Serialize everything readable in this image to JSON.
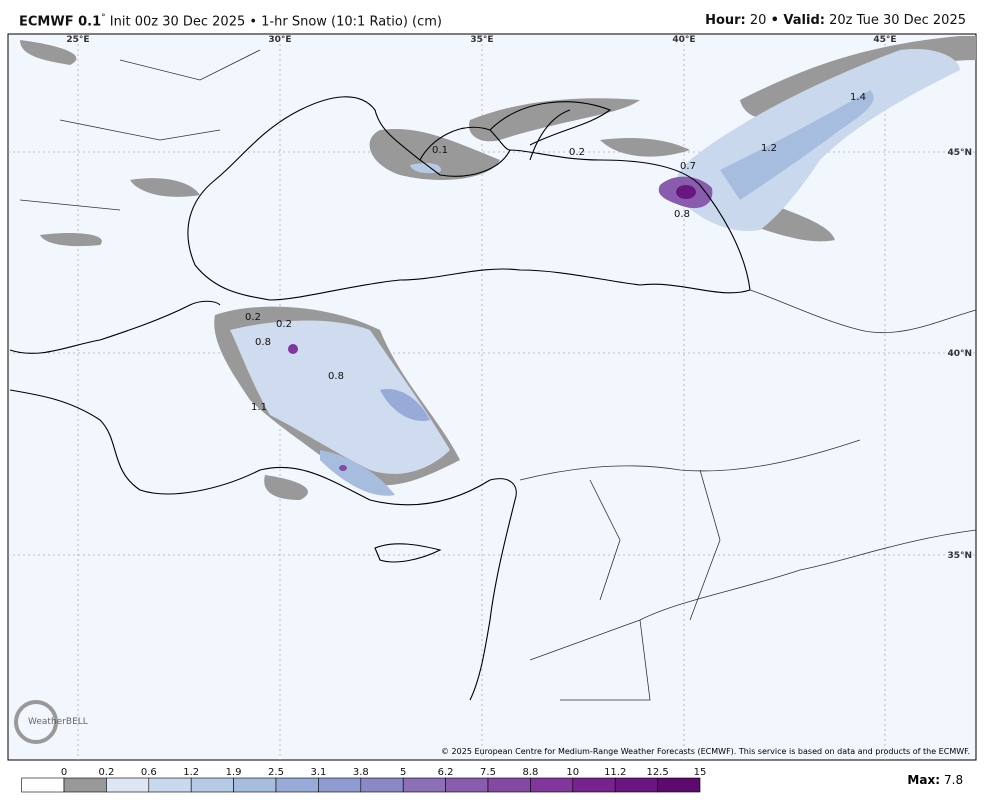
{
  "header": {
    "model": "ECMWF 0.1",
    "degree": "°",
    "subtitle": "Init 00z 30 Dec 2025 • 1-hr Snow (10:1 Ratio) (cm)",
    "hour_label": "Hour:",
    "hour": "20",
    "valid_label": "• Valid:",
    "valid": "20z Tue 30 Dec 2025"
  },
  "map": {
    "lon_labels": [
      "25°E",
      "30°E",
      "35°E",
      "40°E",
      "45°E"
    ],
    "lat_labels": [
      "45°N",
      "40°N",
      "35°N"
    ],
    "contour_labels": [
      "0.1",
      "0.2",
      "0.7",
      "1.2",
      "1.4",
      "0.8",
      "0.2",
      "0.2",
      "0.8",
      "0.8",
      "1.1"
    ],
    "logo": "WeatherBELL",
    "copyright": "© 2025 European Centre for Medium-Range Weather Forecasts (ECMWF). This service is based on data and products of the ECMWF."
  },
  "legend": {
    "ticks": [
      0,
      0.2,
      0.6,
      1.2,
      1.9,
      2.5,
      3.1,
      3.8,
      5,
      6.2,
      7.5,
      8.8,
      10,
      11.2,
      12.5,
      15
    ],
    "colors": [
      "#ffffff",
      "#999999",
      "#dde6f2",
      "#c9d8ec",
      "#b7cae5",
      "#a7bde0",
      "#98aad8",
      "#8e9bd0",
      "#8a88c6",
      "#8b70b8",
      "#8a5cad",
      "#8649a3",
      "#80369a",
      "#76238d",
      "#6a1680",
      "#5c0a6e"
    ],
    "max_label": "Max:",
    "max": 7.8
  }
}
